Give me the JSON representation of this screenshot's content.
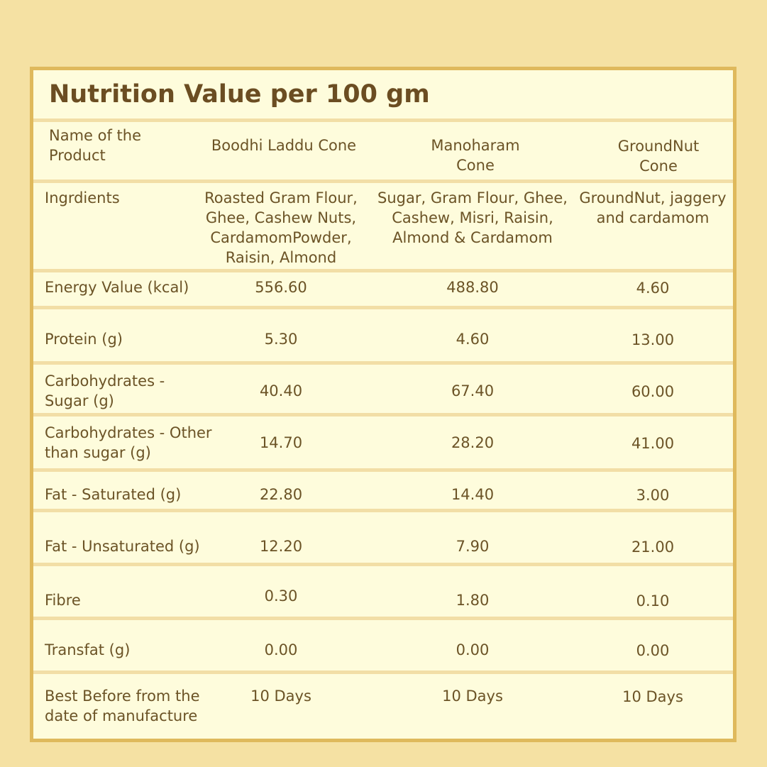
{
  "title": "Nutrition Value per 100 gm",
  "header": {
    "label": [
      "Name of the",
      "Product"
    ],
    "products": [
      [
        "Boodhi Laddu Cone"
      ],
      [
        "Manoharam",
        "Cone"
      ],
      [
        "GroundNut",
        "Cone"
      ]
    ]
  },
  "ingredients": {
    "label": "Ingrdients",
    "values": [
      [
        "Roasted Gram Flour,",
        "Ghee, Cashew Nuts,",
        "CardamomPowder,",
        "Raisin, Almond"
      ],
      [
        "Sugar, Gram Flour, Ghee,",
        "Cashew, Misri, Raisin,",
        "Almond & Cardamom"
      ],
      [
        "GroundNut, jaggery",
        "and cardamom"
      ]
    ]
  },
  "rows": [
    {
      "label": [
        "Energy Value (kcal)"
      ],
      "values": [
        "556.60",
        "488.80",
        "4.60"
      ]
    },
    {
      "label": [
        "Protein (g)"
      ],
      "values": [
        "5.30",
        "4.60",
        "13.00"
      ]
    },
    {
      "label": [
        "Carbohydrates -",
        "Sugar (g)"
      ],
      "values": [
        "40.40",
        "67.40",
        "60.00"
      ]
    },
    {
      "label": [
        "Carbohydrates - Other",
        "than sugar (g)"
      ],
      "values": [
        "14.70",
        "28.20",
        "41.00"
      ]
    },
    {
      "label": [
        "Fat - Saturated (g)"
      ],
      "values": [
        "22.80",
        "14.40",
        "3.00"
      ]
    },
    {
      "label": [
        "Fat - Unsaturated (g)"
      ],
      "values": [
        "12.20",
        "7.90",
        "21.00"
      ]
    },
    {
      "label": [
        "Fibre"
      ],
      "values": [
        "0.30",
        "1.80",
        "0.10"
      ]
    },
    {
      "label": [
        "Transfat (g)"
      ],
      "values": [
        "0.00",
        "0.00",
        "0.00"
      ]
    },
    {
      "label": [
        "Best Before from the",
        "date of manufacture"
      ],
      "values": [
        "10 Days",
        "10 Days",
        "10 Days"
      ]
    }
  ]
}
